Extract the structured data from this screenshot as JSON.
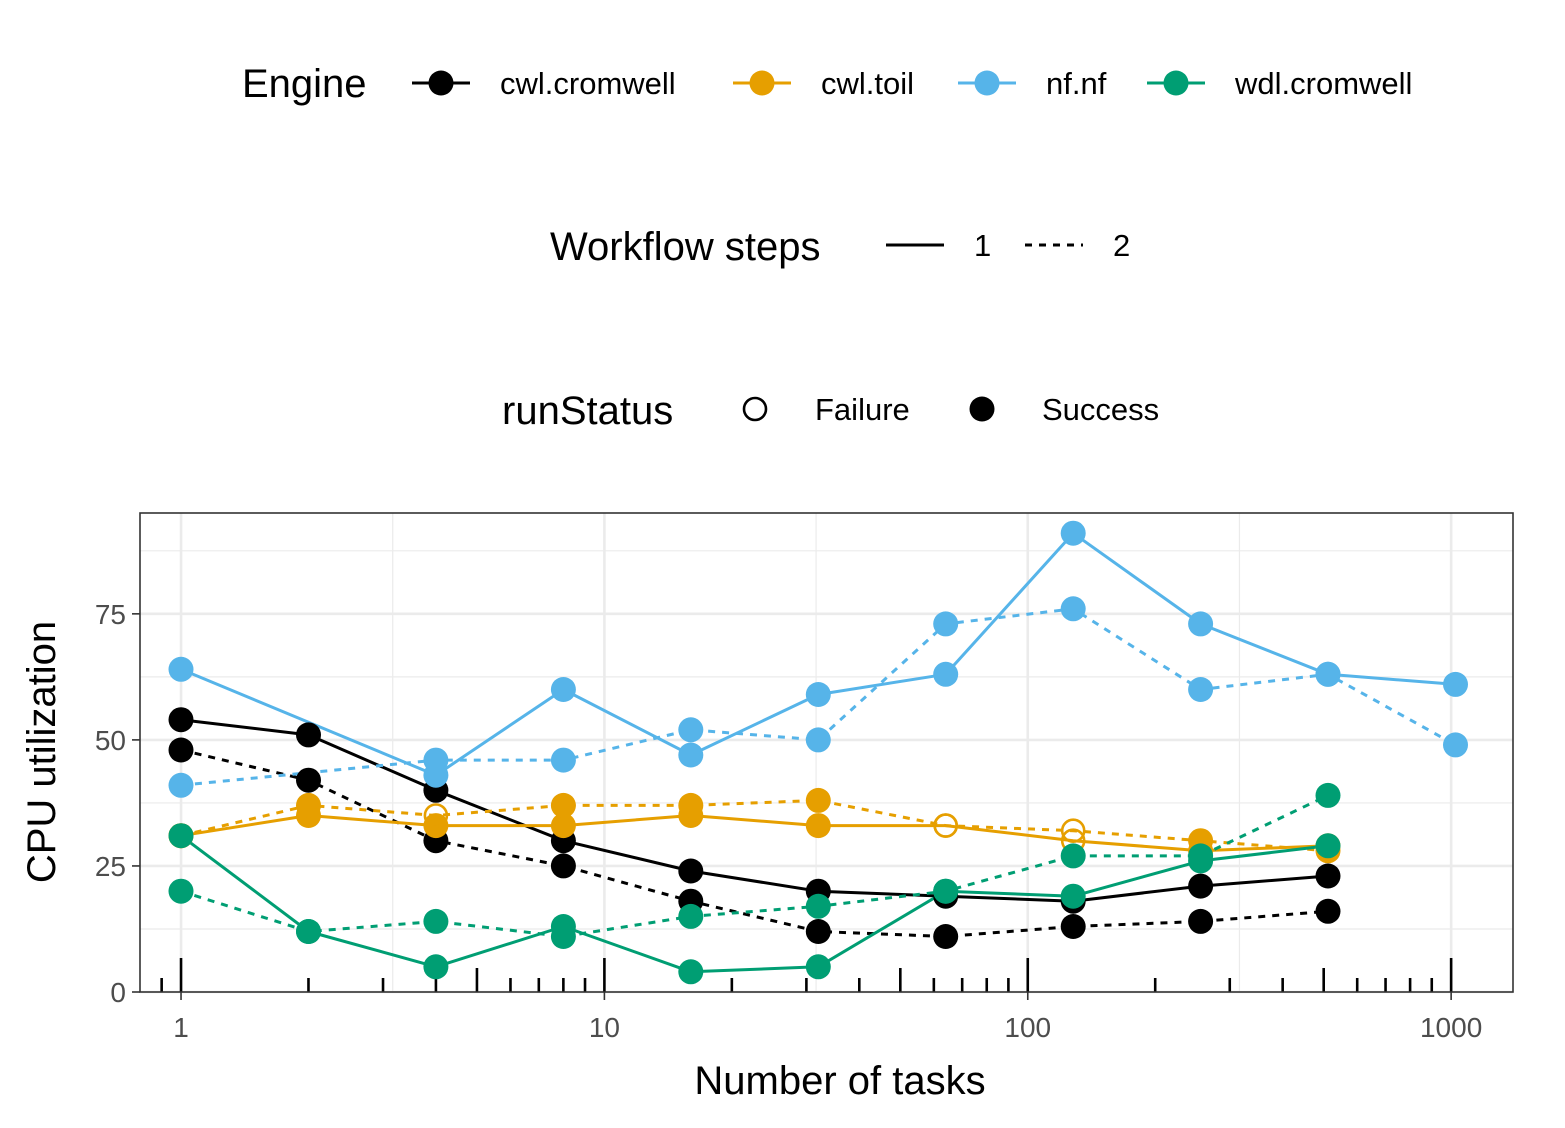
{
  "chart_data": {
    "type": "line",
    "xlabel": "Number of tasks",
    "ylabel": "CPU utilization",
    "x_scale": "log10",
    "xlim": [
      0.8,
      1400
    ],
    "ylim": [
      0,
      95
    ],
    "x_ticks": [
      1,
      10,
      100,
      1000
    ],
    "x_tick_labels": [
      "1",
      "10",
      "100",
      "1000"
    ],
    "y_ticks": [
      0,
      25,
      50,
      75
    ],
    "y_tick_labels": [
      "0",
      "25",
      "50",
      "75"
    ],
    "grid": true,
    "legend_position": "top",
    "legends": {
      "engine": {
        "title": "Engine",
        "items": [
          {
            "label": "cwl.cromwell",
            "color": "#000000"
          },
          {
            "label": "cwl.toil",
            "color": "#E69F00"
          },
          {
            "label": "nf.nf",
            "color": "#56B4E9"
          },
          {
            "label": "wdl.cromwell",
            "color": "#009E73"
          }
        ]
      },
      "steps": {
        "title": "Workflow steps",
        "items": [
          {
            "label": "1",
            "dash": "solid"
          },
          {
            "label": "2",
            "dash": "dotted"
          }
        ]
      },
      "status": {
        "title": "runStatus",
        "items": [
          {
            "label": "Failure",
            "filled": false
          },
          {
            "label": "Success",
            "filled": true
          }
        ]
      }
    },
    "series": [
      {
        "engine": "cwl.cromwell",
        "steps": "1",
        "color": "#000000",
        "points": [
          [
            1,
            54,
            "S"
          ],
          [
            2,
            51,
            "S"
          ],
          [
            4,
            40,
            "S"
          ],
          [
            8,
            30,
            "S"
          ],
          [
            16,
            24,
            "S"
          ],
          [
            32,
            20,
            "S"
          ],
          [
            64,
            19,
            "S"
          ],
          [
            128,
            18,
            "S"
          ],
          [
            256,
            21,
            "S"
          ],
          [
            512,
            23,
            "S"
          ]
        ]
      },
      {
        "engine": "cwl.cromwell",
        "steps": "2",
        "color": "#000000",
        "points": [
          [
            1,
            48,
            "S"
          ],
          [
            2,
            42,
            "S"
          ],
          [
            4,
            30,
            "S"
          ],
          [
            8,
            25,
            "S"
          ],
          [
            16,
            18,
            "S"
          ],
          [
            32,
            12,
            "S"
          ],
          [
            64,
            11,
            "S"
          ],
          [
            128,
            13,
            "S"
          ],
          [
            256,
            14,
            "S"
          ],
          [
            512,
            16,
            "S"
          ]
        ]
      },
      {
        "engine": "cwl.toil",
        "steps": "1",
        "color": "#E69F00",
        "points": [
          [
            1,
            31,
            "S"
          ],
          [
            2,
            35,
            "S"
          ],
          [
            4,
            33,
            "S"
          ],
          [
            8,
            33,
            "S"
          ],
          [
            16,
            35,
            "S"
          ],
          [
            32,
            33,
            "S"
          ],
          [
            64,
            33,
            "F"
          ],
          [
            128,
            30,
            "F"
          ],
          [
            256,
            28,
            "S"
          ],
          [
            512,
            29,
            "S"
          ]
        ]
      },
      {
        "engine": "cwl.toil",
        "steps": "2",
        "color": "#E69F00",
        "points": [
          [
            1,
            31,
            "S"
          ],
          [
            2,
            37,
            "S"
          ],
          [
            4,
            35,
            "F"
          ],
          [
            8,
            37,
            "S"
          ],
          [
            16,
            37,
            "S"
          ],
          [
            32,
            38,
            "S"
          ],
          [
            64,
            33,
            "F"
          ],
          [
            128,
            32,
            "F"
          ],
          [
            256,
            30,
            "S"
          ],
          [
            512,
            28,
            "S"
          ]
        ]
      },
      {
        "engine": "nf.nf",
        "steps": "1",
        "color": "#56B4E9",
        "points": [
          [
            1,
            64,
            "S"
          ],
          [
            4,
            43,
            "S"
          ],
          [
            8,
            60,
            "S"
          ],
          [
            16,
            47,
            "S"
          ],
          [
            32,
            59,
            "S"
          ],
          [
            64,
            63,
            "S"
          ],
          [
            128,
            91,
            "S"
          ],
          [
            256,
            73,
            "S"
          ],
          [
            512,
            63,
            "S"
          ],
          [
            1024,
            61,
            "S"
          ]
        ]
      },
      {
        "engine": "nf.nf",
        "steps": "2",
        "color": "#56B4E9",
        "points": [
          [
            1,
            41,
            "S"
          ],
          [
            4,
            46,
            "S"
          ],
          [
            8,
            46,
            "S"
          ],
          [
            16,
            52,
            "S"
          ],
          [
            32,
            50,
            "S"
          ],
          [
            64,
            73,
            "S"
          ],
          [
            128,
            76,
            "S"
          ],
          [
            256,
            60,
            "S"
          ],
          [
            512,
            63,
            "S"
          ],
          [
            1024,
            49,
            "S"
          ]
        ]
      },
      {
        "engine": "wdl.cromwell",
        "steps": "1",
        "color": "#009E73",
        "points": [
          [
            1,
            31,
            "S"
          ],
          [
            2,
            12,
            "S"
          ],
          [
            4,
            5,
            "S"
          ],
          [
            8,
            13,
            "S"
          ],
          [
            16,
            4,
            "S"
          ],
          [
            32,
            5,
            "S"
          ],
          [
            64,
            20,
            "S"
          ],
          [
            128,
            19,
            "S"
          ],
          [
            256,
            26,
            "S"
          ],
          [
            512,
            29,
            "S"
          ]
        ]
      },
      {
        "engine": "wdl.cromwell",
        "steps": "2",
        "color": "#009E73",
        "points": [
          [
            1,
            20,
            "S"
          ],
          [
            2,
            12,
            "S"
          ],
          [
            4,
            14,
            "S"
          ],
          [
            8,
            11,
            "S"
          ],
          [
            16,
            15,
            "S"
          ],
          [
            32,
            17,
            "S"
          ],
          [
            64,
            20,
            "S"
          ],
          [
            128,
            27,
            "S"
          ],
          [
            256,
            27,
            "S"
          ],
          [
            512,
            39,
            "S"
          ]
        ]
      }
    ]
  }
}
